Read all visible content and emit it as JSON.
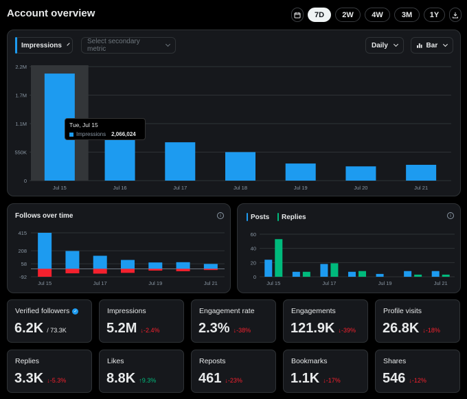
{
  "header": {
    "title": "Account overview",
    "ranges": [
      "7D",
      "2W",
      "4W",
      "3M",
      "1Y"
    ],
    "active_range": "7D"
  },
  "main_chart": {
    "primary_metric": "Impressions",
    "secondary_placeholder": "Select secondary metric",
    "interval": "Daily",
    "chart_type": "Bar",
    "tooltip": {
      "date": "Tue, Jul 15",
      "label": "Impressions",
      "value": "2,066,024"
    }
  },
  "follows": {
    "title": "Follows over time"
  },
  "posts_replies": {
    "legend": [
      "Posts",
      "Replies"
    ]
  },
  "chart_data": [
    {
      "type": "bar",
      "categories": [
        "Jul 15",
        "Jul 16",
        "Jul 17",
        "Jul 18",
        "Jul 19",
        "Jul 20",
        "Jul 21"
      ],
      "series": [
        {
          "name": "Impressions",
          "values": [
            2066024,
            800000,
            740000,
            550000,
            330000,
            275000,
            305000
          ]
        }
      ],
      "y_ticks": [
        "2.2M",
        "1.7M",
        "1.1M",
        "550K",
        "0"
      ],
      "ylim": [
        0,
        2200000
      ],
      "highlight_index": 0,
      "colors": [
        "#1d9bf0"
      ]
    },
    {
      "type": "bar",
      "categories": [
        "Jul 15",
        "Jul 16",
        "Jul 17",
        "Jul 18",
        "Jul 19",
        "Jul 20",
        "Jul 21"
      ],
      "x_ticks": [
        "Jul 15",
        "Jul 17",
        "Jul 19",
        "Jul 21"
      ],
      "series": [
        {
          "values": [
            415,
            205,
            150,
            102,
            73,
            76,
            56
          ]
        },
        {
          "values": [
            -92,
            -52,
            -56,
            -47,
            -21,
            -28,
            -14
          ]
        }
      ],
      "y_ticks": [
        "415",
        "208",
        "58",
        "-92"
      ],
      "ylim": [
        -92,
        415
      ],
      "colors": [
        "#1d9bf0",
        "#f4212e"
      ]
    },
    {
      "type": "bar",
      "categories": [
        "Jul 15",
        "Jul 16",
        "Jul 17",
        "Jul 18",
        "Jul 19",
        "Jul 20",
        "Jul 21"
      ],
      "x_ticks": [
        "Jul 15",
        "Jul 17",
        "Jul 19",
        "Jul 21"
      ],
      "series": [
        {
          "name": "Posts",
          "values": [
            24,
            7,
            18,
            7,
            4,
            8,
            8
          ]
        },
        {
          "name": "Replies",
          "values": [
            53,
            7,
            19,
            8,
            0,
            3,
            3
          ]
        }
      ],
      "y_ticks": [
        "60",
        "40",
        "20",
        "0"
      ],
      "ylim": [
        0,
        60
      ],
      "colors": [
        "#1d9bf0",
        "#00ba7c"
      ]
    }
  ],
  "metrics": [
    {
      "label": "Verified followers",
      "value": "6.2K",
      "sub": "/ 73.3K",
      "change": "",
      "dir": ""
    },
    {
      "label": "Impressions",
      "value": "5.2M",
      "sub": "",
      "change": "-2.4%",
      "dir": "down"
    },
    {
      "label": "Engagement rate",
      "value": "2.3%",
      "sub": "",
      "change": "-38%",
      "dir": "down"
    },
    {
      "label": "Engagements",
      "value": "121.9K",
      "sub": "",
      "change": "-39%",
      "dir": "down"
    },
    {
      "label": "Profile visits",
      "value": "26.8K",
      "sub": "",
      "change": "-18%",
      "dir": "down"
    },
    {
      "label": "Replies",
      "value": "3.3K",
      "sub": "",
      "change": "-5.3%",
      "dir": "down"
    },
    {
      "label": "Likes",
      "value": "8.8K",
      "sub": "",
      "change": "9.3%",
      "dir": "up"
    },
    {
      "label": "Reposts",
      "value": "461",
      "sub": "",
      "change": "-23%",
      "dir": "down"
    },
    {
      "label": "Bookmarks",
      "value": "1.1K",
      "sub": "",
      "change": "-17%",
      "dir": "down"
    },
    {
      "label": "Shares",
      "value": "546",
      "sub": "",
      "change": "-12%",
      "dir": "down"
    }
  ]
}
